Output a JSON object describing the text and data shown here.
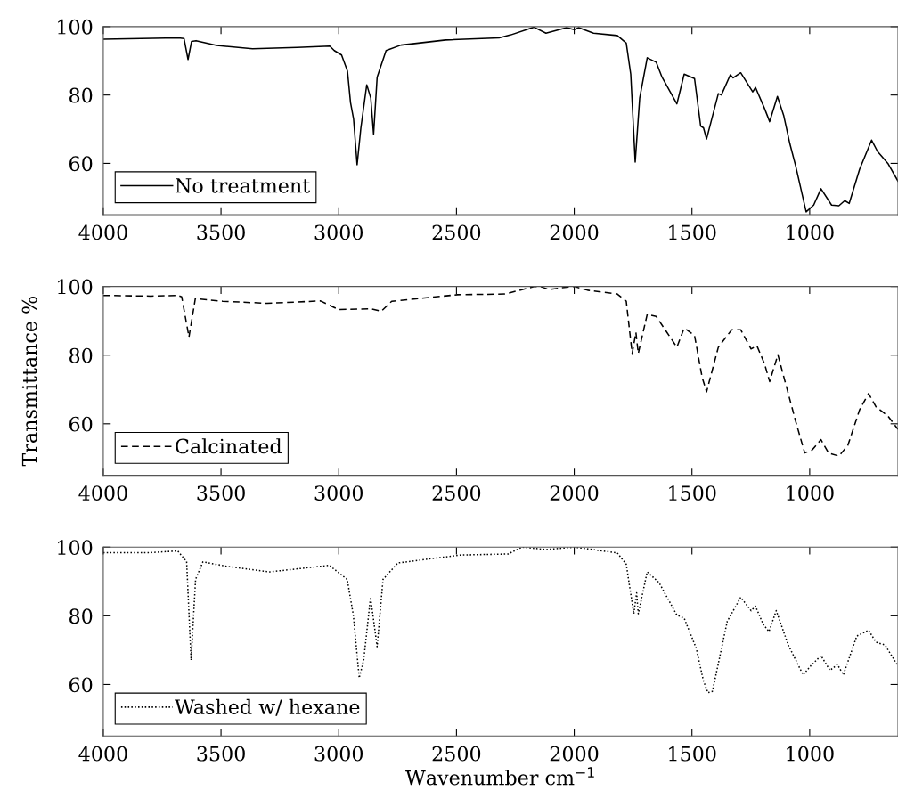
{
  "chart_data": [
    {
      "type": "line",
      "xlim": [
        4000,
        625
      ],
      "ylim": [
        45,
        100
      ],
      "xticks": [
        4000,
        3500,
        3000,
        2500,
        2000,
        1500,
        1000
      ],
      "yticks": [
        60,
        80,
        100
      ],
      "grid": false,
      "legend": "bottom left",
      "series": [
        {
          "name": "No treatment",
          "color": "#000000",
          "line_style": "solid",
          "x": [
            4000,
            3682,
            3657,
            3640,
            3625,
            3606,
            3518,
            3366,
            3177,
            3038,
            3019,
            2988,
            2963,
            2950,
            2937,
            2922,
            2906,
            2881,
            2864,
            2852,
            2837,
            2799,
            2736,
            2546,
            2319,
            2269,
            2174,
            2170,
            2120,
            2032,
            2000,
            1981,
            1918,
            1817,
            1779,
            1760,
            1741,
            1722,
            1690,
            1652,
            1627,
            1564,
            1533,
            1489,
            1463,
            1451,
            1438,
            1388,
            1375,
            1337,
            1325,
            1293,
            1242,
            1230,
            1192,
            1170,
            1137,
            1110,
            1084,
            1059,
            1015,
            983,
            952,
            907,
            876,
            851,
            832,
            788,
            737,
            712,
            668,
            625
          ],
          "values": [
            96.3,
            96.7,
            96.5,
            90.4,
            95.7,
            95.9,
            94.5,
            93.5,
            93.9,
            94.3,
            93.0,
            91.7,
            87.0,
            77.8,
            73.0,
            59.6,
            70.4,
            83.0,
            79.1,
            68.5,
            85.2,
            93.0,
            94.6,
            96.1,
            96.7,
            97.6,
            99.8,
            99.8,
            98.1,
            99.7,
            99.1,
            99.7,
            98.1,
            97.4,
            95.2,
            86.1,
            60.4,
            79.1,
            90.9,
            89.6,
            85.2,
            77.4,
            86.1,
            84.8,
            70.9,
            70.4,
            67.1,
            80.4,
            80.0,
            85.9,
            85.0,
            86.5,
            80.9,
            82.2,
            76.1,
            72.2,
            79.6,
            73.9,
            65.7,
            59.1,
            45.8,
            47.8,
            52.6,
            47.8,
            47.6,
            49.1,
            48.3,
            58.3,
            66.8,
            63.5,
            60.0,
            54.8
          ]
        }
      ]
    },
    {
      "type": "line",
      "xlim": [
        4000,
        625
      ],
      "ylim": [
        45,
        100
      ],
      "xticks": [
        4000,
        3500,
        3000,
        2500,
        2000,
        1500,
        1000
      ],
      "yticks": [
        60,
        80,
        100
      ],
      "grid": false,
      "legend": "bottom left",
      "ylabel": "Transmittance %",
      "series": [
        {
          "name": "Calcinated",
          "color": "#000000",
          "line_style": "dashed",
          "x": [
            4000,
            3798,
            3682,
            3667,
            3636,
            3609,
            3493,
            3304,
            3077,
            3002,
            2863,
            2819,
            2775,
            2497,
            2294,
            2168,
            2145,
            2107,
            2056,
            2000,
            1943,
            1817,
            1779,
            1754,
            1738,
            1728,
            1690,
            1652,
            1564,
            1533,
            1489,
            1457,
            1438,
            1388,
            1331,
            1293,
            1249,
            1224,
            1192,
            1170,
            1135,
            1059,
            1021,
            989,
            952,
            920,
            876,
            838,
            788,
            750,
            718,
            668,
            625
          ],
          "values": [
            97.4,
            97.2,
            97.4,
            97.0,
            85.3,
            96.5,
            95.7,
            95.1,
            95.8,
            93.3,
            93.5,
            92.8,
            95.7,
            97.6,
            97.8,
            100,
            100,
            99.1,
            99.6,
            100,
            98.9,
            97.8,
            95.7,
            80.5,
            86.6,
            80.5,
            91.9,
            91.3,
            82.3,
            87.9,
            85.7,
            73.6,
            69.3,
            82.3,
            87.4,
            87.4,
            81.8,
            82.7,
            77.5,
            72.3,
            80.1,
            60.6,
            51.5,
            52.4,
            55.4,
            51.5,
            50.6,
            53.7,
            64.1,
            68.8,
            64.9,
            62.3,
            58.4
          ]
        }
      ]
    },
    {
      "type": "line",
      "xlim": [
        4000,
        625
      ],
      "ylim": [
        45,
        100
      ],
      "xticks": [
        4000,
        3500,
        3000,
        2500,
        2000,
        1500,
        1000
      ],
      "yticks": [
        60,
        80,
        100
      ],
      "grid": false,
      "legend": "bottom left",
      "xlabel": "Wavenumber cm$^{−1}$",
      "series": [
        {
          "name": "Washed w/ hexane",
          "color": "#000000",
          "line_style": "dotted",
          "x": [
            4000,
            3798,
            3684,
            3646,
            3627,
            3608,
            3577,
            3482,
            3293,
            3040,
            2964,
            2938,
            2913,
            2894,
            2865,
            2837,
            2812,
            2749,
            2484,
            2281,
            2221,
            2120,
            2000,
            1943,
            1817,
            1779,
            1747,
            1735,
            1728,
            1690,
            1640,
            1564,
            1533,
            1482,
            1451,
            1432,
            1413,
            1350,
            1293,
            1249,
            1230,
            1198,
            1173,
            1142,
            1091,
            1028,
            996,
            952,
            914,
            882,
            857,
            800,
            750,
            718,
            680,
            625
          ],
          "values": [
            98.4,
            98.4,
            98.9,
            95.8,
            67.1,
            90.6,
            95.7,
            94.5,
            92.8,
            94.7,
            90.6,
            80.2,
            61.9,
            67.1,
            85.4,
            71.0,
            90.6,
            95.4,
            97.7,
            98.0,
            100,
            99.3,
            100,
            99.5,
            98.3,
            95.0,
            80.6,
            86.7,
            80.6,
            92.8,
            89.7,
            80.2,
            79.3,
            70.6,
            61.0,
            57.6,
            58.0,
            78.4,
            85.4,
            81.5,
            82.8,
            77.6,
            75.4,
            81.5,
            71.5,
            62.8,
            65.4,
            68.4,
            64.1,
            65.8,
            62.8,
            74.1,
            75.8,
            72.3,
            71.5,
            65.4
          ]
        }
      ]
    }
  ]
}
